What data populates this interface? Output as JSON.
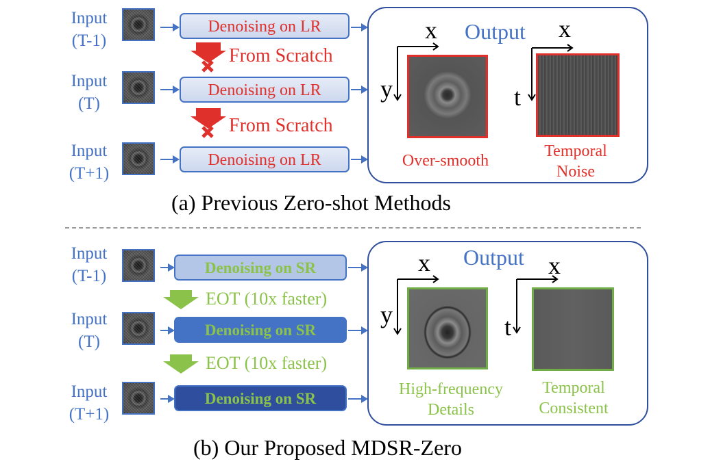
{
  "input_labels": {
    "prev_minus": [
      "Input",
      "(T-1)"
    ],
    "prev_t": [
      "Input",
      "(T)"
    ],
    "prev_plus": [
      "Input",
      "(T+1)"
    ],
    "ours_minus": [
      "Input",
      "(T-1)"
    ],
    "ours_t": [
      "Input",
      "(T)"
    ],
    "ours_plus": [
      "Input",
      "(T+1)"
    ]
  },
  "prev": {
    "box_label": "Denoising on LR",
    "transition": "From Scratch",
    "output_title": "Output",
    "spatial_caption": "Over-smooth",
    "temporal_caption": [
      "Temporal",
      "Noise"
    ],
    "caption": "(a) Previous Zero-shot Methods"
  },
  "ours": {
    "box_label": "Denoising on SR",
    "transition": "EOT (10x faster)",
    "output_title": "Output",
    "spatial_caption": [
      "High-frequency",
      "Details"
    ],
    "temporal_caption": [
      "Temporal",
      "Consistent"
    ],
    "caption": "(b) Our Proposed MDSR-Zero"
  },
  "axes": {
    "x": "x",
    "y": "y",
    "t": "t"
  },
  "colors": {
    "blue": "#4472C4",
    "red": "#e0302b",
    "green": "#8bc34a",
    "navy": "#2f4f9e"
  },
  "icons": {
    "cross": "x-mark-icon",
    "down_arrow": "down-arrow-icon"
  }
}
